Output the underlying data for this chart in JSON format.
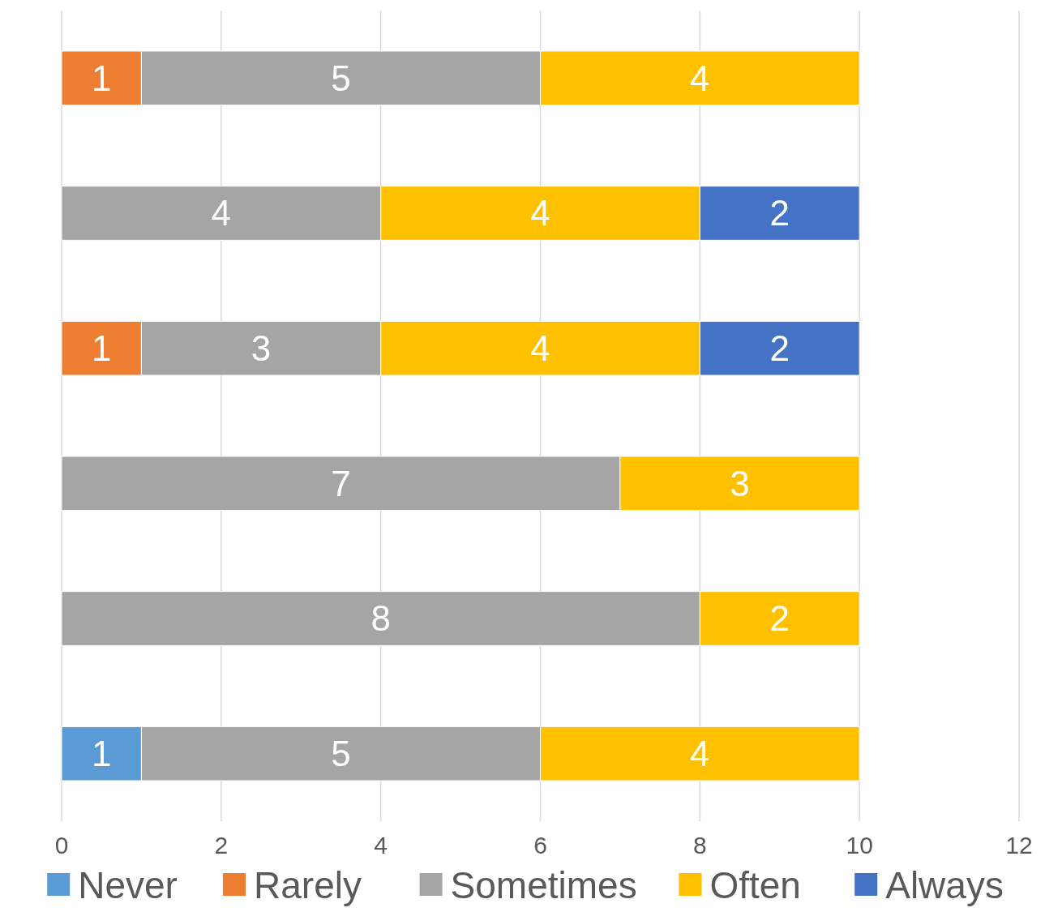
{
  "chart_data": {
    "type": "bar",
    "orientation": "horizontal",
    "stacked": true,
    "categories": [
      null,
      null,
      null,
      null,
      null,
      null
    ],
    "series": [
      {
        "name": "Never",
        "color": "#5b9bd5",
        "values": [
          null,
          null,
          null,
          null,
          null,
          1
        ]
      },
      {
        "name": "Rarely",
        "color": "#ed7d31",
        "values": [
          1,
          null,
          1,
          null,
          null,
          null
        ]
      },
      {
        "name": "Sometimes",
        "color": "#a5a5a5",
        "values": [
          5,
          4,
          3,
          7,
          8,
          5
        ]
      },
      {
        "name": "Often",
        "color": "#ffc000",
        "values": [
          4,
          4,
          4,
          3,
          2,
          4
        ]
      },
      {
        "name": "Always",
        "color": "#4472c4",
        "values": [
          null,
          2,
          2,
          null,
          null,
          null
        ]
      }
    ],
    "xlim": [
      0,
      12
    ],
    "xticks": [
      0,
      2,
      4,
      6,
      8,
      10,
      12
    ],
    "grid": "x",
    "legend": "bottom",
    "data_labels": true,
    "tick_labels": "x"
  }
}
